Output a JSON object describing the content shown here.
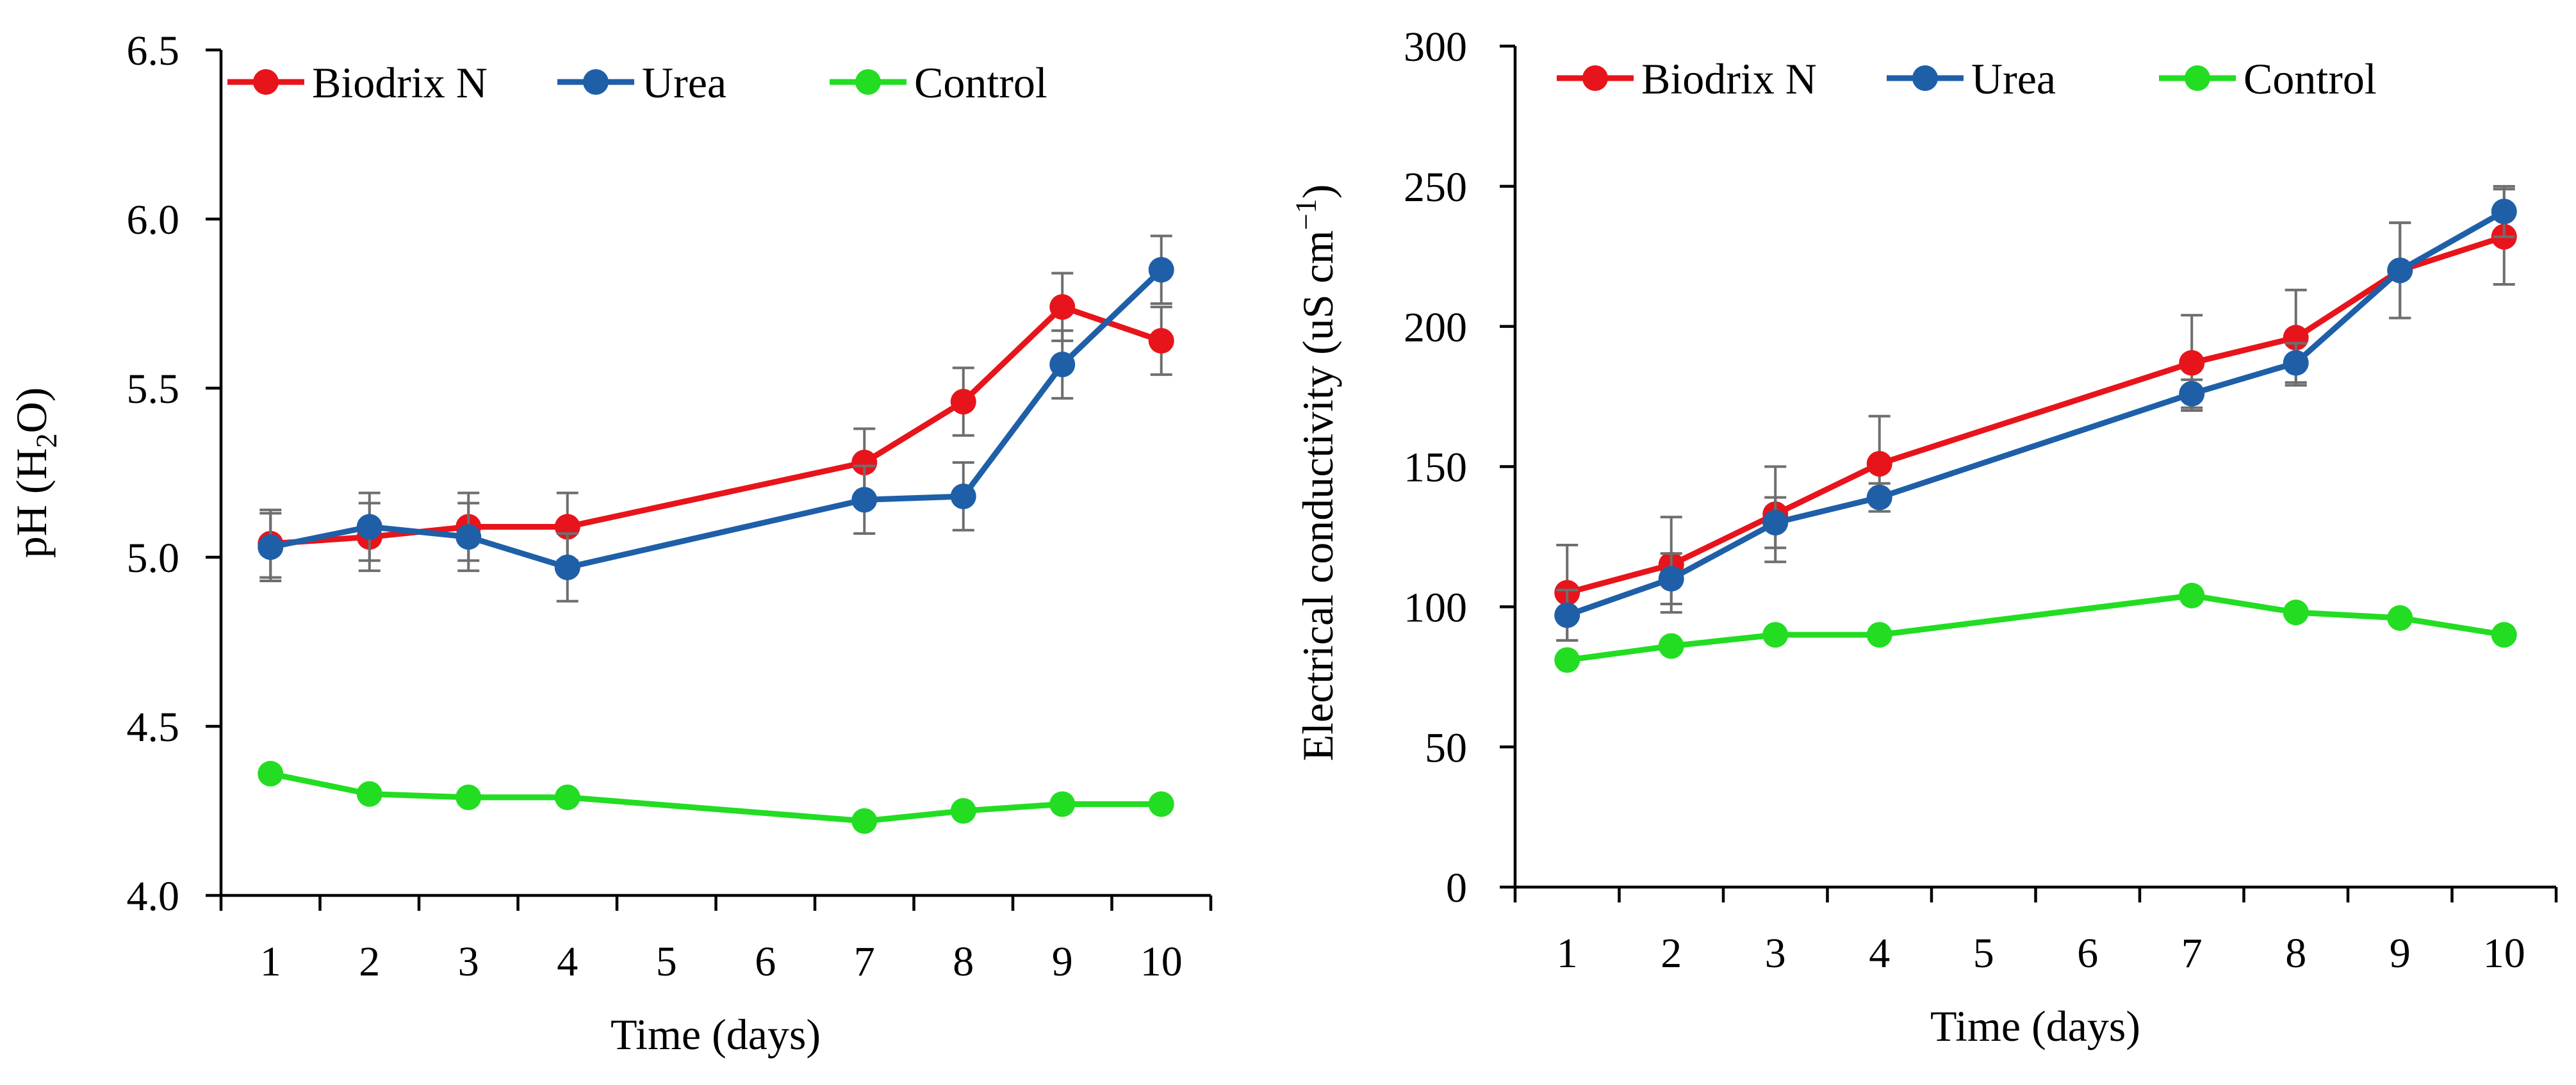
{
  "chart_data": [
    {
      "id": "ph",
      "type": "line",
      "title": "",
      "xlabel": "Time (days)",
      "ylabel": {
        "prefix": "pH (H",
        "sub": "2",
        "suffix": "O)"
      },
      "categories": [
        "1",
        "2",
        "3",
        "4",
        "5",
        "6",
        "7",
        "8",
        "9",
        "10"
      ],
      "ylim": [
        4.0,
        6.5
      ],
      "yticks": [
        4.0,
        4.5,
        5.0,
        5.5,
        6.0,
        6.5
      ],
      "ytick_labels": [
        "4.0",
        "4.5",
        "5.0",
        "5.5",
        "6.0",
        "6.5"
      ],
      "grid": false,
      "legend": "top",
      "series": [
        {
          "name": "Biodrix N",
          "color": "#e8141b",
          "points": [
            {
              "day": 1,
              "value": 5.04,
              "err": 0.1
            },
            {
              "day": 2,
              "value": 5.06,
              "err": 0.1
            },
            {
              "day": 3,
              "value": 5.09,
              "err": 0.1
            },
            {
              "day": 4,
              "value": 5.09,
              "err": 0.1
            },
            {
              "day": 7,
              "value": 5.28,
              "err": 0.1
            },
            {
              "day": 8,
              "value": 5.46,
              "err": 0.1
            },
            {
              "day": 9,
              "value": 5.74,
              "err": 0.1
            },
            {
              "day": 10,
              "value": 5.64,
              "err": 0.1
            }
          ]
        },
        {
          "name": "Urea",
          "color": "#1e5fa8",
          "points": [
            {
              "day": 1,
              "value": 5.03,
              "err": 0.1
            },
            {
              "day": 2,
              "value": 5.09,
              "err": 0.1
            },
            {
              "day": 3,
              "value": 5.06,
              "err": 0.1
            },
            {
              "day": 4,
              "value": 4.97,
              "err": 0.1
            },
            {
              "day": 7,
              "value": 5.17,
              "err": 0.1
            },
            {
              "day": 8,
              "value": 5.18,
              "err": 0.1
            },
            {
              "day": 9,
              "value": 5.57,
              "err": 0.1
            },
            {
              "day": 10,
              "value": 5.85,
              "err": 0.1
            }
          ]
        },
        {
          "name": "Control",
          "color": "#22dd22",
          "points": [
            {
              "day": 1,
              "value": 4.36
            },
            {
              "day": 2,
              "value": 4.3
            },
            {
              "day": 3,
              "value": 4.29
            },
            {
              "day": 4,
              "value": 4.29
            },
            {
              "day": 7,
              "value": 4.22
            },
            {
              "day": 8,
              "value": 4.25
            },
            {
              "day": 9,
              "value": 4.27
            },
            {
              "day": 10,
              "value": 4.27
            }
          ]
        }
      ]
    },
    {
      "id": "ec",
      "type": "line",
      "title": "",
      "xlabel": "Time (days)",
      "ylabel": {
        "prefix": "Electrical conductivity (uS cm",
        "sup": "−1",
        "suffix": ")"
      },
      "categories": [
        "1",
        "2",
        "3",
        "4",
        "5",
        "6",
        "7",
        "8",
        "9",
        "10"
      ],
      "ylim": [
        0,
        300
      ],
      "yticks": [
        0,
        50,
        100,
        150,
        200,
        250,
        300
      ],
      "ytick_labels": [
        "0",
        "50",
        "100",
        "150",
        "200",
        "250",
        "300"
      ],
      "grid": false,
      "legend": "top",
      "series": [
        {
          "name": "Biodrix N",
          "color": "#e8141b",
          "points": [
            {
              "day": 1,
              "value": 105,
              "err": 17
            },
            {
              "day": 2,
              "value": 115,
              "err": 17
            },
            {
              "day": 3,
              "value": 133,
              "err": 17
            },
            {
              "day": 4,
              "value": 151,
              "err": 17
            },
            {
              "day": 7,
              "value": 187,
              "err": 17
            },
            {
              "day": 8,
              "value": 196,
              "err": 17
            },
            {
              "day": 9,
              "value": 220,
              "err": 17
            },
            {
              "day": 10,
              "value": 232,
              "err": 17
            }
          ]
        },
        {
          "name": "Urea",
          "color": "#1e5fa8",
          "points": [
            {
              "day": 1,
              "value": 97,
              "err": 9
            },
            {
              "day": 2,
              "value": 110,
              "err": 9
            },
            {
              "day": 3,
              "value": 130,
              "err": 9
            },
            {
              "day": 4,
              "value": 139,
              "err": 5
            },
            {
              "day": 7,
              "value": 176,
              "err": 5
            },
            {
              "day": 8,
              "value": 187,
              "err": 7
            },
            {
              "day": 9,
              "value": 220,
              "err": 17
            },
            {
              "day": 10,
              "value": 241,
              "err": 9
            }
          ]
        },
        {
          "name": "Control",
          "color": "#22dd22",
          "points": [
            {
              "day": 1,
              "value": 81
            },
            {
              "day": 2,
              "value": 86
            },
            {
              "day": 3,
              "value": 90
            },
            {
              "day": 4,
              "value": 90
            },
            {
              "day": 7,
              "value": 104
            },
            {
              "day": 8,
              "value": 98
            },
            {
              "day": 9,
              "value": 96
            },
            {
              "day": 10,
              "value": 90
            }
          ]
        }
      ]
    }
  ]
}
